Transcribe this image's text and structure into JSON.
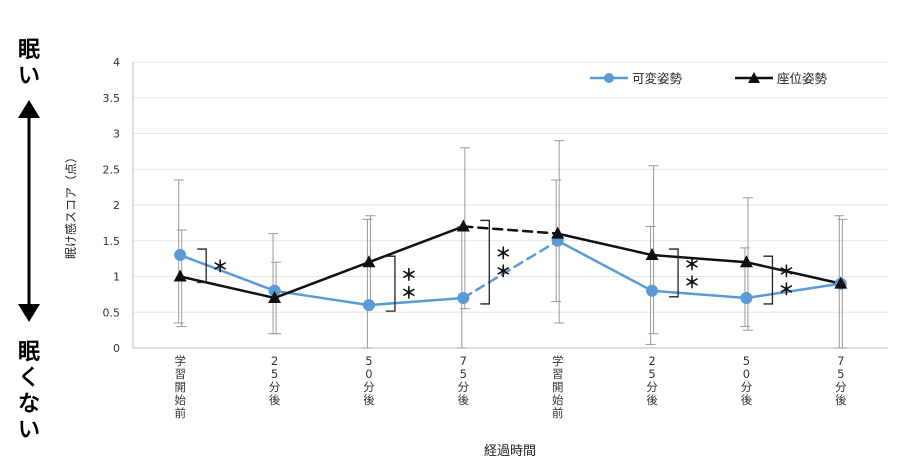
{
  "side_labels": {
    "top": [
      "眠",
      "い"
    ],
    "bottom": [
      "眠",
      "く",
      "な",
      "い"
    ]
  },
  "colors": {
    "series_variable": "#5b9bd5",
    "series_seated": "#111111",
    "grid": "#e6e6e6",
    "axis": "#bfbfbf",
    "error_bar": "#9a9a9a"
  },
  "chart_data": {
    "type": "line",
    "ylabel": "眠け感スコア（点）",
    "xlabel": "経過時間",
    "ylim": [
      0,
      4
    ],
    "yticks": [
      "0",
      "0.5",
      "1",
      "1.5",
      "2",
      "2.5",
      "3",
      "3.5",
      "4"
    ],
    "categories": [
      "学習開始前",
      "25分後",
      "50分後",
      "75分後",
      "学習開始前",
      "25分後",
      "50分後",
      "75分後"
    ],
    "legend_position": "top-right",
    "grid": true,
    "series": [
      {
        "name": "可変姿勢",
        "marker": "circle",
        "values": [
          1.3,
          0.8,
          0.6,
          0.7,
          1.5,
          0.8,
          0.7,
          0.9
        ],
        "error_low": [
          0.35,
          0.2,
          0.0,
          0.0,
          0.65,
          0.05,
          0.3,
          0.0
        ],
        "error_high": [
          2.35,
          1.6,
          1.8,
          1.7,
          2.35,
          1.7,
          1.4,
          1.85
        ],
        "dashed_segment_after_index": 3
      },
      {
        "name": "座位姿勢",
        "marker": "triangle",
        "values": [
          1.0,
          0.7,
          1.2,
          1.7,
          1.6,
          1.3,
          1.2,
          0.9
        ],
        "error_low": [
          0.3,
          0.2,
          0.6,
          0.55,
          0.35,
          0.2,
          0.25,
          0.0
        ],
        "error_high": [
          1.65,
          1.2,
          1.85,
          2.8,
          2.9,
          2.55,
          2.1,
          1.8
        ],
        "dashed_segment_after_index": 3
      }
    ],
    "significance": [
      {
        "index": 0,
        "label": "＊"
      },
      {
        "index": 2,
        "label": "＊＊"
      },
      {
        "index": 3,
        "label": "＊＊"
      },
      {
        "index": 5,
        "label": "＊＊"
      },
      {
        "index": 6,
        "label": "＊＊"
      }
    ]
  }
}
